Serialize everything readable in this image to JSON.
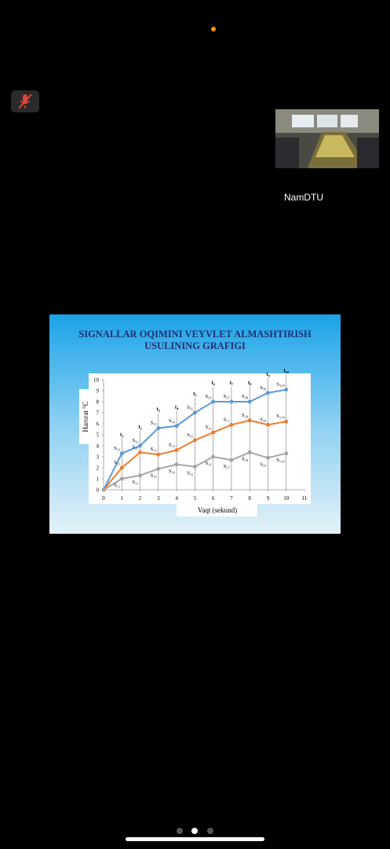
{
  "participant": {
    "name": "NamDTU"
  },
  "chart_data": {
    "type": "line",
    "title": "SIGNALLAR OQIMINI VEYVLET ALMASHTIRISH USULINING GRAFIGI",
    "xlabel": "Vaqt (sekund)",
    "ylabel": "Harorat °C",
    "x": [
      0,
      1,
      2,
      3,
      4,
      5,
      6,
      7,
      8,
      9,
      10
    ],
    "xlim": [
      0,
      11
    ],
    "xticks": [
      0,
      1,
      2,
      3,
      4,
      5,
      6,
      7,
      8,
      9,
      10,
      11
    ],
    "ylim": [
      0,
      10
    ],
    "yticks": [
      0,
      1,
      2,
      3,
      4,
      5,
      6,
      7,
      8,
      9,
      10
    ],
    "series": [
      {
        "color": "#5b9bd5",
        "values": [
          0,
          3.3,
          4.0,
          5.6,
          5.8,
          7.0,
          8.0,
          8.0,
          8.0,
          8.8,
          9.1
        ],
        "labels": [
          null,
          "S₃₁",
          "S₃₂",
          "S₃₃",
          "S₃₄",
          "S₃₅",
          "S₃₆",
          "S₃₇",
          "S₃₈",
          "S₃₉",
          "S₃₁₀"
        ]
      },
      {
        "color": "#ed7d31",
        "values": [
          0,
          2.0,
          3.4,
          3.2,
          3.6,
          4.5,
          5.2,
          5.9,
          6.3,
          5.9,
          6.2
        ],
        "labels": [
          null,
          "S₂₁",
          "S₂₂",
          "S₂₃",
          "S₂₄",
          "S₂₅",
          "S₂₆",
          "S₂₇",
          "S₂₈",
          "S₂₉",
          "S₂₁₀"
        ]
      },
      {
        "color": "#a5a5a5",
        "values": [
          0,
          1.0,
          1.3,
          1.9,
          2.3,
          2.1,
          3.0,
          2.7,
          3.4,
          2.9,
          3.3
        ],
        "labels": [
          null,
          "S₁₁",
          "S₁₂",
          "S₁₃",
          "S₁₄",
          "S₁₅",
          "S₁₆",
          "S₁₇",
          "S₁₈",
          "S₁₉",
          "S₁₁₀"
        ]
      }
    ],
    "annotations": [
      {
        "x": 1,
        "text": "t₁"
      },
      {
        "x": 2,
        "text": "t₂"
      },
      {
        "x": 3,
        "text": "t₃"
      },
      {
        "x": 4,
        "text": "t₄"
      },
      {
        "x": 5,
        "text": "t₅"
      },
      {
        "x": 6,
        "text": "t₆"
      },
      {
        "x": 7,
        "text": "t₇"
      },
      {
        "x": 8,
        "text": "t₈"
      },
      {
        "x": 9,
        "text": "t₉"
      },
      {
        "x": 10,
        "text": "t₁₀"
      }
    ]
  }
}
